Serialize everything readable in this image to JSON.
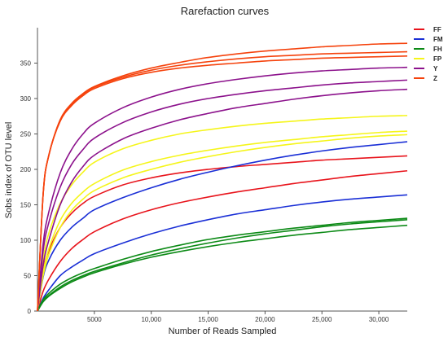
{
  "chart_data": {
    "type": "line",
    "title": "Rarefaction curves",
    "xlabel": "Number of Reads Sampled",
    "ylabel": "Sobs index of OTU level",
    "xlim": [
      0,
      32500
    ],
    "ylim": [
      0,
      400
    ],
    "x_ticks": [
      5000,
      10000,
      15000,
      20000,
      25000,
      30000
    ],
    "x_tick_labels": [
      "5000",
      "10,000",
      "15,000",
      "20,000",
      "25,000",
      "30,000"
    ],
    "y_ticks": [
      0,
      50,
      100,
      150,
      200,
      250,
      300,
      350
    ],
    "y_tick_labels": [
      "0",
      "50",
      "100",
      "150",
      "200",
      "250",
      "300",
      "350"
    ],
    "grid": false,
    "legend_placement": "top-right, outside plot",
    "x": [
      0,
      500,
      1000,
      2000,
      3000,
      4000,
      5000,
      7500,
      10000,
      12500,
      15000,
      17500,
      20000,
      22500,
      25000,
      27500,
      30000,
      32500
    ],
    "series": [
      {
        "name": "FF",
        "color": "#e8141c",
        "values": [
          0,
          58,
          85,
          118,
          138,
          152,
          162,
          178,
          188,
          195,
          200,
          204,
          207,
          210,
          213,
          215,
          217,
          219
        ]
      },
      {
        "name": "FF",
        "color": "#e8141c",
        "values": [
          0,
          28,
          45,
          70,
          88,
          101,
          112,
          130,
          143,
          153,
          161,
          168,
          174,
          180,
          185,
          190,
          194,
          198
        ]
      },
      {
        "name": "FM",
        "color": "#1a2fd6",
        "values": [
          0,
          48,
          72,
          100,
          118,
          131,
          143,
          160,
          174,
          186,
          196,
          205,
          213,
          220,
          226,
          231,
          235,
          239
        ]
      },
      {
        "name": "FM",
        "color": "#1a2fd6",
        "values": [
          0,
          18,
          30,
          50,
          62,
          72,
          81,
          96,
          109,
          120,
          129,
          137,
          143,
          149,
          154,
          158,
          161,
          164
        ]
      },
      {
        "name": "FH",
        "color": "#0c8a16",
        "values": [
          0,
          16,
          25,
          38,
          47,
          54,
          60,
          73,
          84,
          93,
          101,
          107,
          112,
          117,
          121,
          125,
          128,
          131
        ]
      },
      {
        "name": "FH",
        "color": "#0c8a16",
        "values": [
          0,
          14,
          22,
          34,
          43,
          50,
          56,
          68,
          79,
          88,
          96,
          103,
          109,
          114,
          119,
          123,
          126,
          129
        ]
      },
      {
        "name": "FH",
        "color": "#0c8a16",
        "values": [
          0,
          13,
          21,
          32,
          41,
          48,
          54,
          66,
          76,
          84,
          91,
          97,
          102,
          107,
          111,
          115,
          118,
          121
        ]
      },
      {
        "name": "FP",
        "color": "#f5f51a",
        "values": [
          0,
          72,
          110,
          152,
          178,
          196,
          210,
          229,
          241,
          250,
          256,
          261,
          265,
          268,
          271,
          273,
          275,
          276
        ]
      },
      {
        "name": "FP",
        "color": "#f5f51a",
        "values": [
          0,
          55,
          88,
          128,
          152,
          168,
          180,
          199,
          211,
          220,
          227,
          233,
          238,
          242,
          246,
          249,
          252,
          254
        ]
      },
      {
        "name": "FP",
        "color": "#f5f51a",
        "values": [
          0,
          50,
          80,
          118,
          142,
          158,
          170,
          188,
          200,
          210,
          218,
          225,
          231,
          236,
          240,
          244,
          247,
          249
        ]
      },
      {
        "name": "Y",
        "color": "#8c128c",
        "values": [
          0,
          95,
          140,
          195,
          228,
          250,
          265,
          287,
          302,
          313,
          321,
          327,
          332,
          336,
          339,
          341,
          343,
          344
        ]
      },
      {
        "name": "Y",
        "color": "#8c128c",
        "values": [
          0,
          85,
          125,
          175,
          207,
          228,
          244,
          266,
          281,
          292,
          300,
          306,
          311,
          315,
          319,
          322,
          324,
          326
        ]
      },
      {
        "name": "Y",
        "color": "#8c128c",
        "values": [
          0,
          65,
          100,
          150,
          182,
          204,
          220,
          243,
          258,
          270,
          279,
          287,
          293,
          299,
          304,
          308,
          311,
          313
        ]
      },
      {
        "name": "Z",
        "color": "#f5420c",
        "values": [
          0,
          165,
          220,
          270,
          293,
          307,
          317,
          332,
          343,
          351,
          358,
          363,
          367,
          370,
          373,
          375,
          377,
          378
        ]
      },
      {
        "name": "Z",
        "color": "#f5420c",
        "values": [
          0,
          165,
          220,
          270,
          292,
          306,
          316,
          330,
          340,
          347,
          352,
          356,
          359,
          361,
          363,
          364,
          365,
          366
        ]
      },
      {
        "name": "Z",
        "color": "#f5420c",
        "values": [
          0,
          165,
          220,
          268,
          290,
          304,
          314,
          328,
          337,
          343,
          347,
          350,
          353,
          355,
          357,
          358,
          359,
          360
        ]
      }
    ],
    "legend": [
      {
        "name": "FF",
        "color": "#e8141c"
      },
      {
        "name": "FM",
        "color": "#1a2fd6"
      },
      {
        "name": "FH",
        "color": "#0c8a16"
      },
      {
        "name": "FP",
        "color": "#f5f51a"
      },
      {
        "name": "Y",
        "color": "#8c128c"
      },
      {
        "name": "Z",
        "color": "#f5420c"
      }
    ]
  }
}
